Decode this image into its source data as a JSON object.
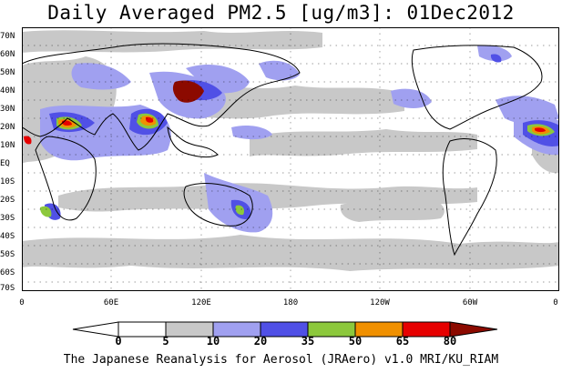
{
  "title": "Daily Averaged PM2.5 [ug/m3]: 01Dec2012",
  "latitude_labels": [
    "70N",
    "60N",
    "50N",
    "40N",
    "30N",
    "20N",
    "10N",
    "EQ",
    "10S",
    "20S",
    "30S",
    "40S",
    "50S",
    "60S",
    "70S"
  ],
  "longitude_labels": [
    "0",
    "60E",
    "120E",
    "180",
    "120W",
    "60W",
    "0"
  ],
  "colorbar": {
    "levels": [
      "0",
      "5",
      "10",
      "20",
      "35",
      "50",
      "65",
      "80"
    ],
    "colors": [
      "#ffffff",
      "#c8c8c8",
      "#a0a0f0",
      "#5050e6",
      "#8cc83c",
      "#f09000",
      "#e60000",
      "#8c0a00"
    ]
  },
  "credit": "The Japanese Reanalysis for Aerosol (JRAero) v1.0 MRI/KU_RIAM"
}
